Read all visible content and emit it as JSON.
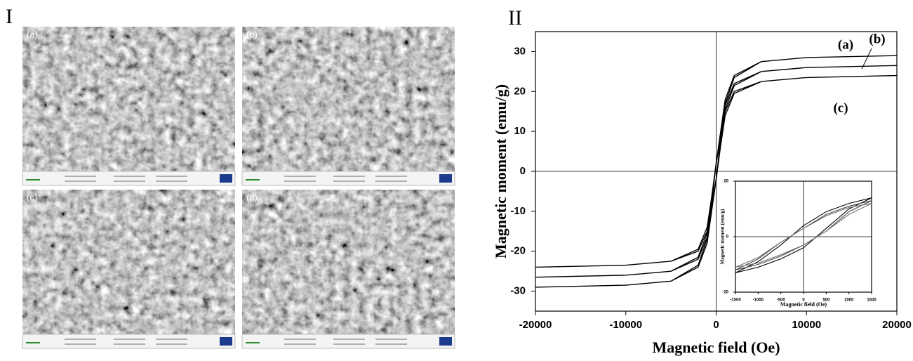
{
  "figure": {
    "panel_left": "I",
    "panel_right": "II",
    "images": [
      {
        "label": "(a)"
      },
      {
        "label": "(b)"
      },
      {
        "label": "(c)"
      },
      {
        "label": "(d)"
      }
    ]
  },
  "chart_data": [
    {
      "type": "line",
      "xlabel": "Magnetic field (Oe)",
      "ylabel": "Magnetic moment (emu/g)",
      "x": [
        -20000,
        -10000,
        -5000,
        -2000,
        -1000,
        -500,
        0,
        500,
        1000,
        2000,
        5000,
        10000,
        20000,
        10000,
        5000,
        2000,
        1000,
        500,
        0,
        -500,
        -1000,
        -2000,
        -5000,
        -10000,
        -20000
      ],
      "series": [
        {
          "name": "(a)",
          "color": "#000000",
          "values": [
            -29,
            -28.5,
            -27.5,
            -24,
            -18,
            -10,
            -2,
            8,
            17,
            23.5,
            27.5,
            28.5,
            29,
            28.5,
            27.5,
            24,
            18,
            10,
            2,
            -8,
            -17,
            -23.5,
            -27.5,
            -28.5,
            -29
          ]
        },
        {
          "name": "(b)",
          "color": "#000000",
          "values": [
            -26.5,
            -26,
            -25,
            -22,
            -16.5,
            -9,
            -2,
            7,
            15.5,
            21.5,
            25,
            26,
            26.5,
            26,
            25,
            22,
            16.5,
            9,
            2,
            -7,
            -15.5,
            -21.5,
            -25,
            -26,
            -26.5
          ]
        },
        {
          "name": "(c)",
          "color": "#000000",
          "values": [
            -24,
            -23.5,
            -22.5,
            -20,
            -15,
            -8,
            -2,
            6.5,
            14,
            19.5,
            22.5,
            23.5,
            24,
            23.5,
            22.5,
            20,
            15,
            8,
            2,
            -6.5,
            -14,
            -19.5,
            -22.5,
            -23.5,
            -24
          ]
        }
      ],
      "xlim": [
        -20000,
        20000
      ],
      "ylim": [
        -35,
        35
      ],
      "xticks": [
        -20000,
        -10000,
        0,
        10000,
        20000
      ],
      "yticks": [
        -30,
        -20,
        -10,
        0,
        10,
        20,
        30
      ],
      "zero_lines": true
    },
    {
      "type": "line",
      "xlabel": "Magnetic field (Oe)",
      "ylabel": "Magnetic moment (emu/g)",
      "x": [
        -1500,
        -1000,
        -500,
        0,
        500,
        1000,
        1500,
        1000,
        500,
        0,
        -500,
        -1000,
        -1500
      ],
      "series": [
        {
          "color": "#000000",
          "values": [
            -13,
            -11,
            -8,
            -4,
            3,
            10,
            14,
            12,
            9,
            4,
            -3,
            -9,
            -13
          ]
        },
        {
          "color": "#444444",
          "values": [
            -12,
            -10,
            -7,
            -3,
            2,
            9,
            13,
            11,
            8,
            3,
            -2,
            -8,
            -12
          ]
        },
        {
          "color": "#777777",
          "values": [
            -11,
            -9.5,
            -6.5,
            -3,
            2,
            8,
            12,
            10.5,
            7.5,
            3,
            -2,
            -7.5,
            -11
          ]
        }
      ],
      "xlim": [
        -1500,
        1500
      ],
      "ylim": [
        -20,
        20
      ],
      "xticks": [
        -1500,
        -1000,
        -500,
        0,
        500,
        1000,
        1500
      ],
      "yticks": [
        -20,
        0,
        20
      ],
      "zero_lines": true
    }
  ]
}
